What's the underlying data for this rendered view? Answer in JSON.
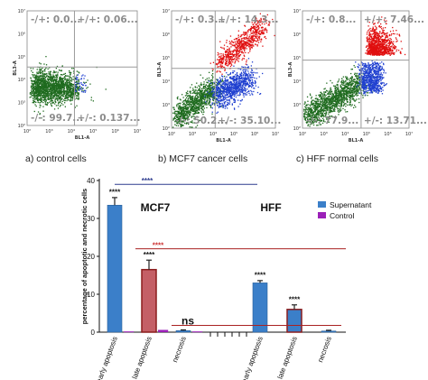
{
  "scatter_panels": [
    {
      "caption": "a) control cells",
      "quadrants": {
        "top_left": "-/+: 0.0...",
        "top_right": "+/+: 0.06...",
        "bottom_left": "-/-: 99.7...",
        "bottom_right": "+/-: 0.137..."
      },
      "xlabel": "BL1-A",
      "ylabel": "BL3-A",
      "ticks": [
        "10²",
        "10³",
        "10⁴",
        "10⁵",
        "10⁶",
        "10⁷"
      ],
      "colors": {
        "green": "#1f6b1f",
        "red": "#e01010",
        "blue": "#2040d0"
      }
    },
    {
      "caption": "b) MCF7 cancer cells",
      "quadrants": {
        "top_left": "-/+: 0.3...",
        "top_right": "+/+: 14.3...",
        "bottom_left": "-/-: 50.2...",
        "bottom_right": "+/-: 35.10..."
      },
      "xlabel": "BL1-A",
      "ylabel": "BL3-A",
      "ticks": [
        "10²",
        "10³",
        "10⁴",
        "10⁵",
        "10⁶",
        "10⁷"
      ],
      "colors": {
        "green": "#1f6b1f",
        "red": "#e01010",
        "blue": "#2040d0"
      }
    },
    {
      "caption": "c) HFF normal cells",
      "quadrants": {
        "top_left": "-/+: 0.8...",
        "top_right": "+/+: 7.46...",
        "bottom_left": "-/-: 77.9...",
        "bottom_right": "+/-: 13.71..."
      },
      "xlabel": "BL1-A",
      "ylabel": "BL3-A",
      "ticks": [
        "10²",
        "10³",
        "10⁴",
        "10⁵",
        "10⁶",
        "10⁷"
      ],
      "colors": {
        "green": "#1f6b1f",
        "red": "#e01010",
        "blue": "#2040d0"
      }
    }
  ],
  "chart_data": {
    "type": "bar",
    "ylabel": "percentage of apoptotic and necrotic cells",
    "ylim": [
      0,
      40
    ],
    "yticks": [
      "0",
      "10",
      "20",
      "30",
      "40"
    ],
    "categories": [
      "early apoptosis",
      "late apoptosis",
      "necrosis",
      "early apoptosis",
      "late apoptosis",
      "necrosis"
    ],
    "group_labels": [
      "MCF7",
      "HFF"
    ],
    "series": [
      {
        "name": "Supernatant",
        "color": "#3b7fc9",
        "values": [
          33.5,
          16.5,
          0.4,
          13,
          6,
          0.3
        ],
        "errors": [
          2,
          2.5,
          0.2,
          0.6,
          1.2,
          0.2
        ]
      },
      {
        "name": "Control",
        "color": "#9b20b8",
        "values": [
          0.2,
          0.6,
          0.2,
          0,
          0,
          0
        ],
        "errors": [
          0.1,
          0.4,
          0.1,
          0,
          0,
          0
        ]
      }
    ],
    "significance_labels": [
      "****",
      "****",
      "****",
      "****",
      "****",
      "****",
      "ns"
    ],
    "legend": "top-right",
    "grid": false
  }
}
